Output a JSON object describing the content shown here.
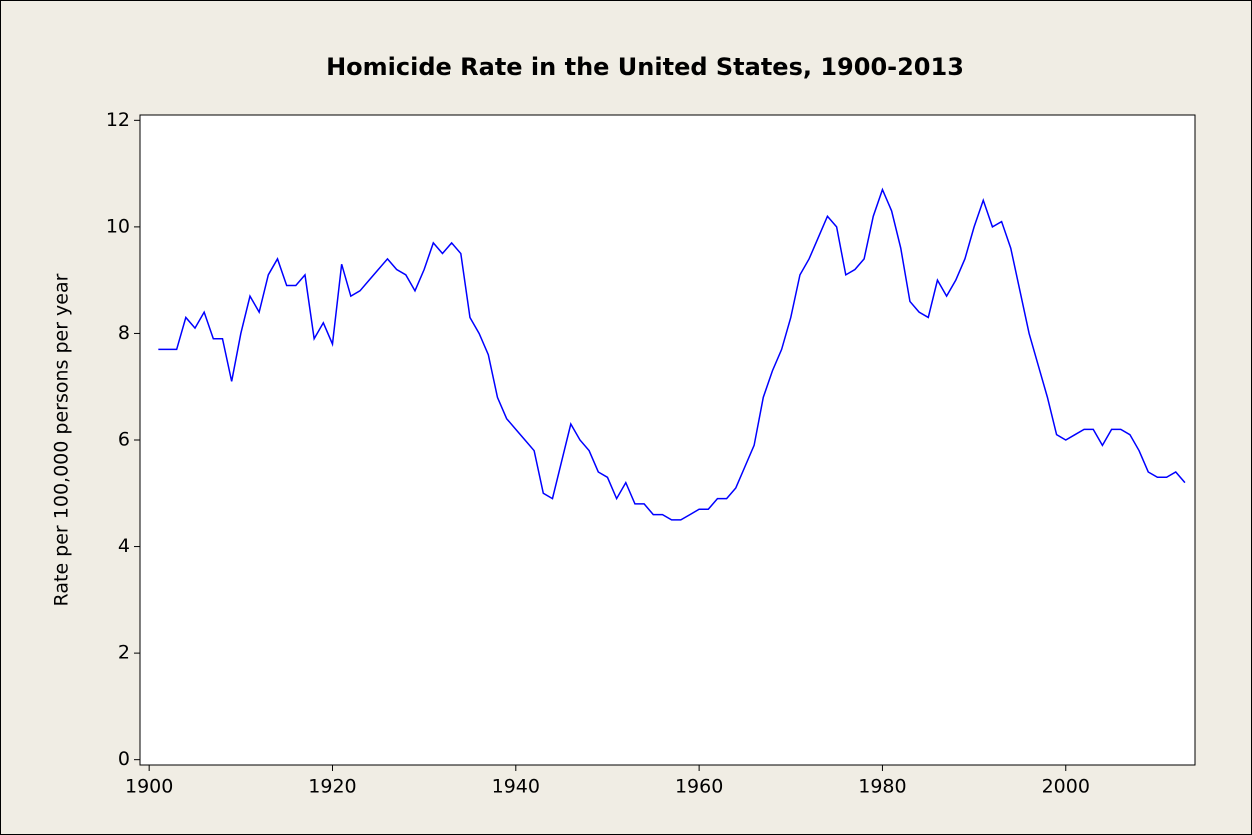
{
  "chart_data": {
    "type": "line",
    "title": "Homicide Rate in the United States, 1900-2013",
    "y_label": "Rate per  100,000 persons per year",
    "color": "#0000ff",
    "x": [
      1901,
      1902,
      1903,
      1904,
      1905,
      1906,
      1907,
      1908,
      1909,
      1910,
      1911,
      1912,
      1913,
      1914,
      1915,
      1916,
      1917,
      1918,
      1919,
      1920,
      1921,
      1922,
      1923,
      1924,
      1925,
      1926,
      1927,
      1928,
      1929,
      1930,
      1931,
      1932,
      1933,
      1934,
      1935,
      1936,
      1937,
      1938,
      1939,
      1940,
      1941,
      1942,
      1943,
      1944,
      1945,
      1946,
      1947,
      1948,
      1949,
      1950,
      1951,
      1952,
      1953,
      1954,
      1955,
      1956,
      1957,
      1958,
      1959,
      1960,
      1961,
      1962,
      1963,
      1964,
      1965,
      1966,
      1967,
      1968,
      1969,
      1970,
      1971,
      1972,
      1973,
      1974,
      1975,
      1976,
      1977,
      1978,
      1979,
      1980,
      1981,
      1982,
      1983,
      1984,
      1985,
      1986,
      1987,
      1988,
      1989,
      1990,
      1991,
      1992,
      1993,
      1994,
      1995,
      1996,
      1997,
      1998,
      1999,
      2000,
      2001,
      2002,
      2003,
      2004,
      2005,
      2006,
      2007,
      2008,
      2009,
      2010,
      2011,
      2012,
      2013
    ],
    "values": [
      7.7,
      7.7,
      7.7,
      8.3,
      8.1,
      8.4,
      7.9,
      7.9,
      7.1,
      8.0,
      8.7,
      8.4,
      9.1,
      9.4,
      8.9,
      8.9,
      9.1,
      7.9,
      8.2,
      7.8,
      9.3,
      8.7,
      8.8,
      9.0,
      9.2,
      9.4,
      9.2,
      9.1,
      8.8,
      9.2,
      9.7,
      9.5,
      9.7,
      9.5,
      8.3,
      8.0,
      7.6,
      6.8,
      6.4,
      6.2,
      6.0,
      5.8,
      5.0,
      4.9,
      5.6,
      6.3,
      6.0,
      5.8,
      5.4,
      5.3,
      4.9,
      5.2,
      4.8,
      4.8,
      4.6,
      4.6,
      4.5,
      4.5,
      4.6,
      4.7,
      4.7,
      4.9,
      4.9,
      5.1,
      5.5,
      5.9,
      6.8,
      7.3,
      7.7,
      8.3,
      9.1,
      9.4,
      9.8,
      10.2,
      10.0,
      9.1,
      9.2,
      9.4,
      10.2,
      10.7,
      10.3,
      9.6,
      8.6,
      8.4,
      8.3,
      9.0,
      8.7,
      9.0,
      9.4,
      10.0,
      10.5,
      10.0,
      10.1,
      9.6,
      8.8,
      8.0,
      7.4,
      6.8,
      6.1,
      6.0,
      6.1,
      6.2,
      6.2,
      5.9,
      6.2,
      6.2,
      6.1,
      5.8,
      5.4,
      5.3,
      5.3,
      5.4,
      5.2
    ],
    "xlim": [
      1899,
      2014.1
    ],
    "ylim": [
      -0.1,
      12.1
    ],
    "xticks": [
      1900,
      1920,
      1940,
      1960,
      1980,
      2000
    ],
    "yticks": [
      0,
      2,
      4,
      6,
      8,
      10,
      12
    ]
  }
}
